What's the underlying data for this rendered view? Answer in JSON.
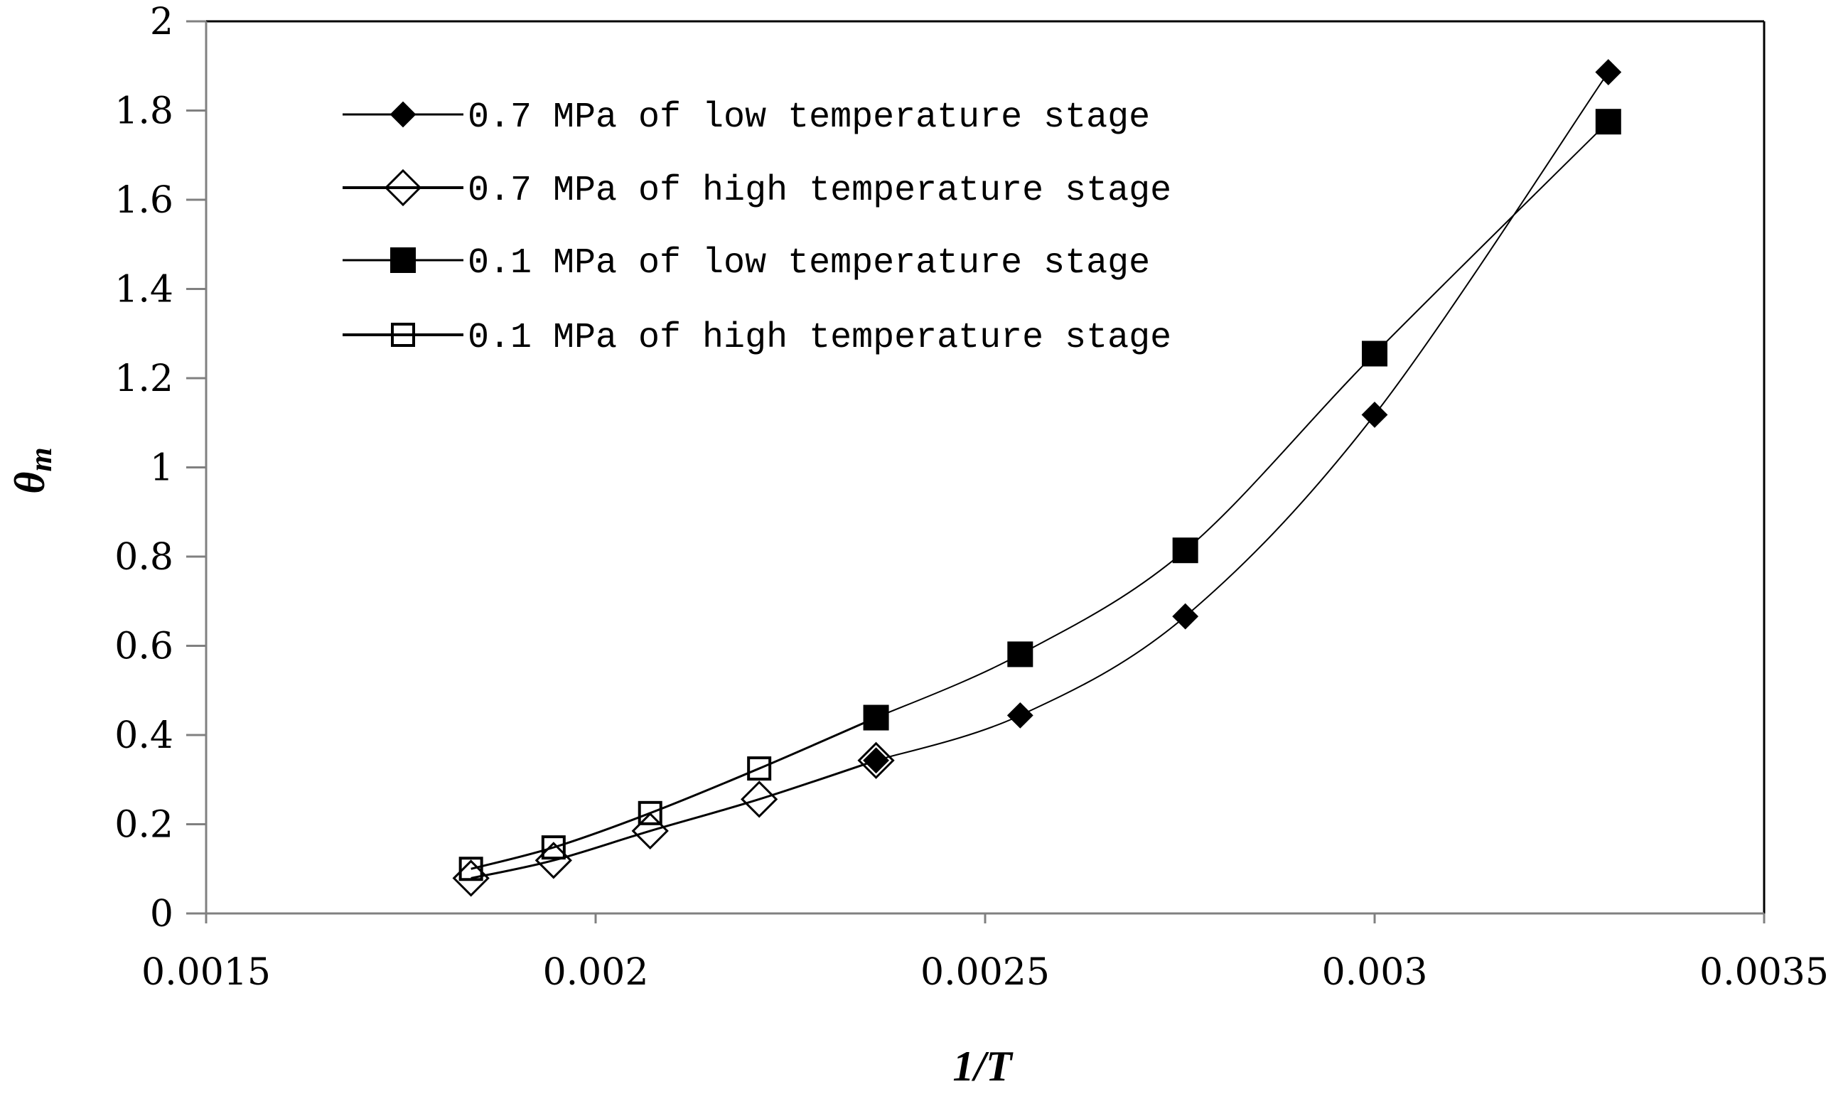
{
  "chart_data": {
    "type": "line",
    "title": "",
    "xlabel": "1/T",
    "ylabel": "θm",
    "ylabel_main": "θ",
    "ylabel_sub": "m",
    "xlim": [
      0.0015,
      0.0035
    ],
    "ylim": [
      0,
      2
    ],
    "x_ticks": [
      0.0015,
      0.002,
      0.0025,
      0.003,
      0.0035
    ],
    "x_tick_labels": [
      "0.0015",
      "0.002",
      "0.0025",
      "0.003",
      "0.0035"
    ],
    "y_ticks": [
      0,
      0.2,
      0.4,
      0.6,
      0.8,
      1,
      1.2,
      1.4,
      1.6,
      1.8,
      2
    ],
    "y_tick_labels": [
      "0",
      "0.2",
      "0.4",
      "0.6",
      "0.8",
      "1",
      "1.2",
      "1.4",
      "1.6",
      "1.8",
      "2"
    ],
    "grid": false,
    "legend_position": "top-left",
    "series": [
      {
        "name": "0.7 MPa of low temperature stage",
        "marker": "filled-diamond",
        "x": [
          0.00236,
          0.002545,
          0.002757,
          0.003,
          0.0033
        ],
        "y": [
          0.343,
          0.444,
          0.666,
          1.118,
          1.886
        ]
      },
      {
        "name": "0.7 MPa of high temperature stage",
        "marker": "open-diamond",
        "x": [
          0.00184,
          0.001946,
          0.00207,
          0.00221,
          0.00236
        ],
        "y": [
          0.079,
          0.119,
          0.185,
          0.256,
          0.343
        ]
      },
      {
        "name": "0.1 MPa of low temperature stage",
        "marker": "filled-square",
        "x": [
          0.00236,
          0.002545,
          0.002757,
          0.003,
          0.0033
        ],
        "y": [
          0.439,
          0.581,
          0.814,
          1.255,
          1.775
        ]
      },
      {
        "name": "0.1 MPa of high temperature stage",
        "marker": "open-square",
        "x": [
          0.00184,
          0.001946,
          0.00207,
          0.00221,
          0.00236
        ],
        "y": [
          0.1,
          0.148,
          0.225,
          0.325,
          0.439
        ]
      }
    ]
  },
  "colors": {
    "line": "#000000",
    "axis": "#808080",
    "background": "#ffffff"
  }
}
